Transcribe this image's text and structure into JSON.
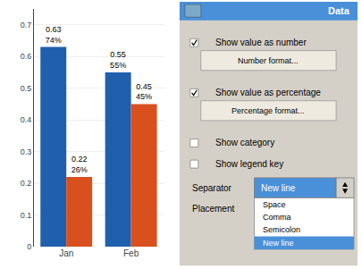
{
  "chart_data": {
    "type": "bar",
    "categories": [
      "Jan",
      "Feb"
    ],
    "series": [
      {
        "color": "#1F5FAD",
        "values": [
          0.63,
          0.55
        ],
        "value_labels": [
          "0.63\n74%",
          "0.55\n55%"
        ]
      },
      {
        "color": "#D94F1E",
        "values": [
          0.22,
          0.45
        ],
        "value_labels": [
          "0.22\n26%",
          "0.45\n45%"
        ]
      }
    ],
    "ylim": [
      0,
      0.75
    ],
    "yticks": [
      0,
      0.1,
      0.2,
      0.3,
      0.4,
      0.5,
      0.6,
      0.7
    ],
    "grid": true,
    "data_labels": true,
    "annotations": [
      "Data",
      "Show value as number",
      "Number format...",
      "Show value as percentage",
      "Percentage format...",
      "Show category",
      "Show legend key",
      "Separator",
      "New line",
      "Placement",
      "Space",
      "Comma",
      "Semicolon",
      "New line"
    ]
  }
}
